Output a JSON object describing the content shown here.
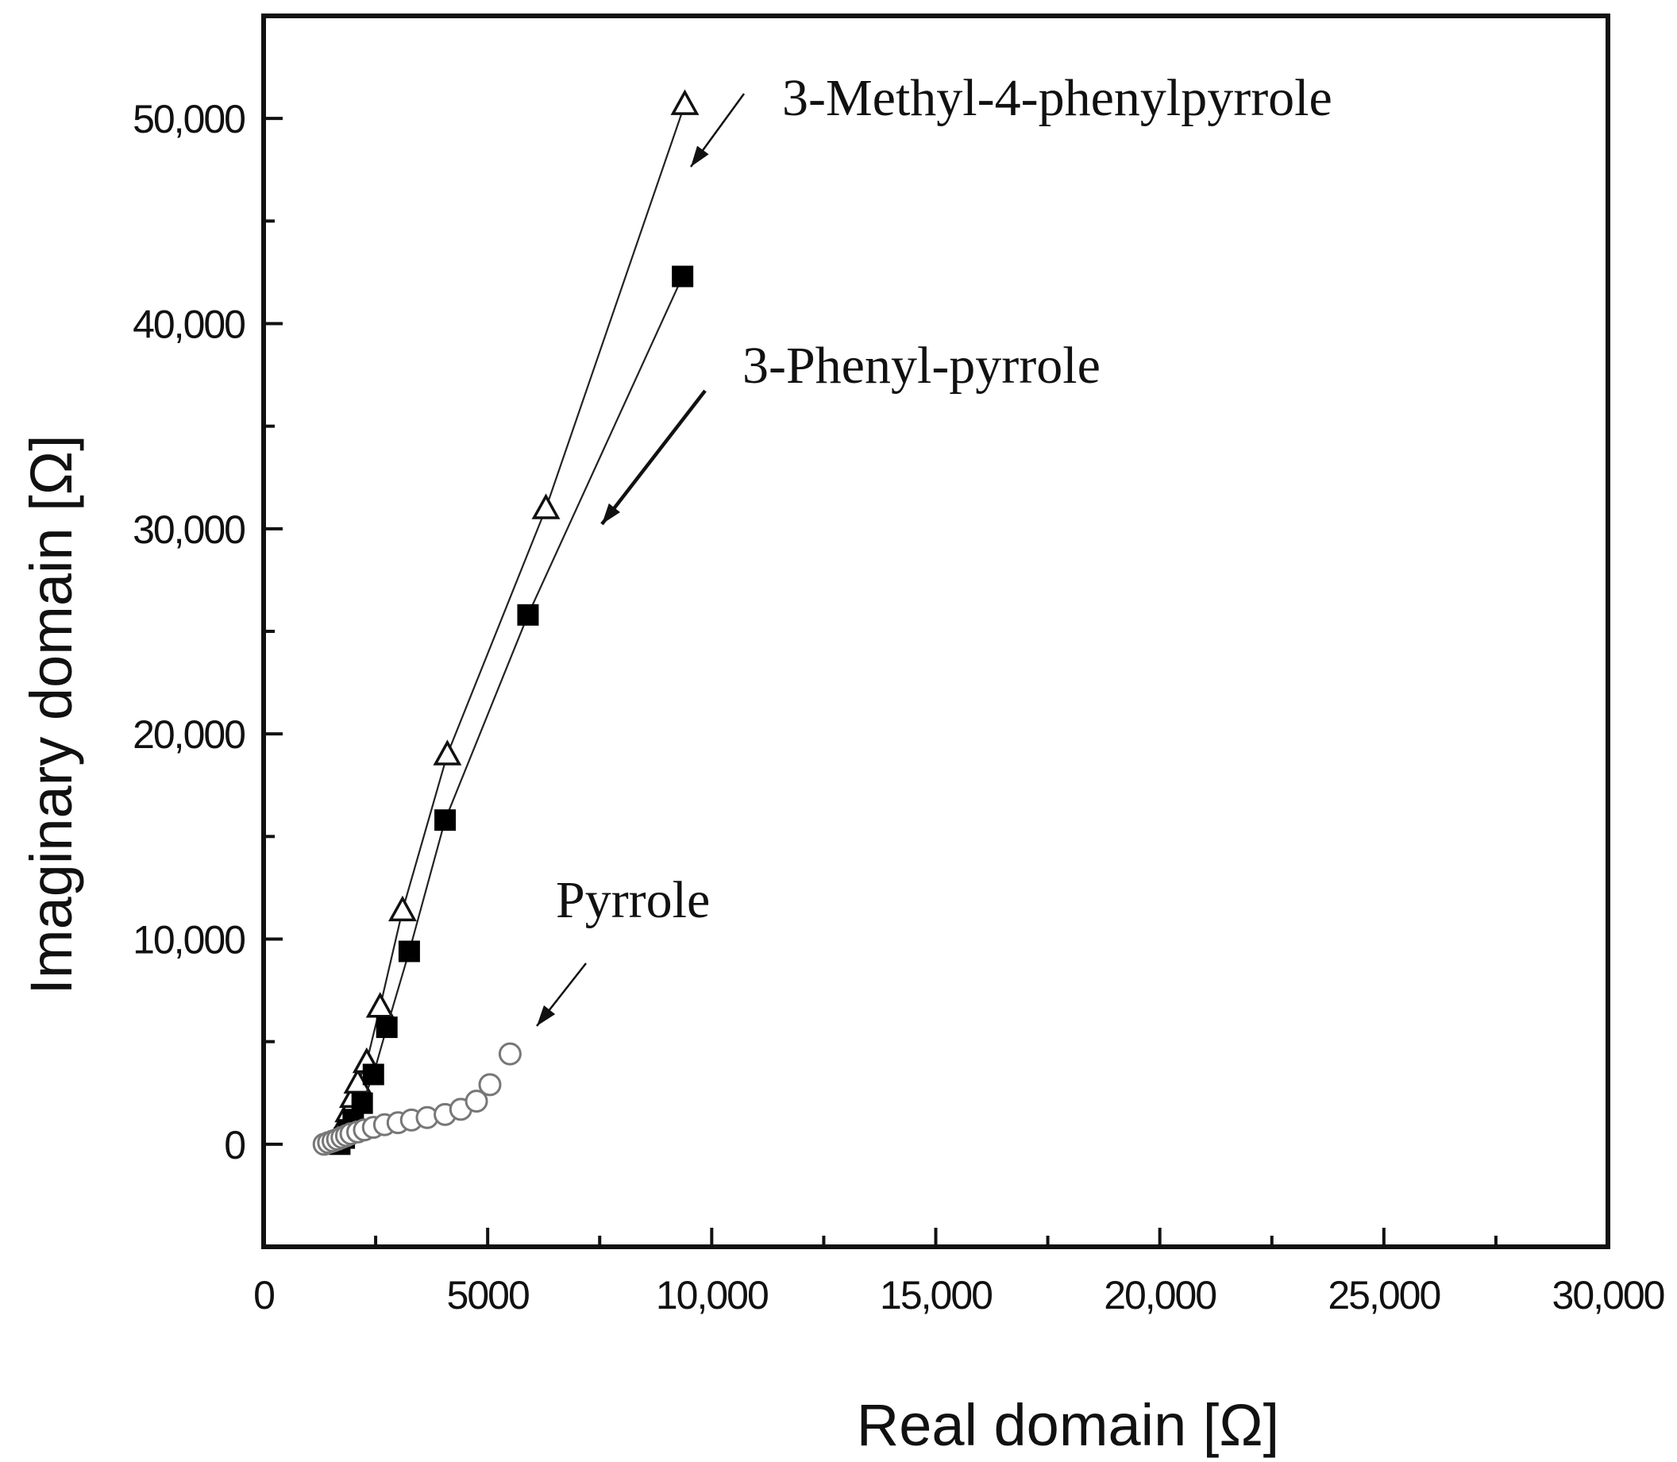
{
  "chart_data": {
    "type": "scatter",
    "title": "",
    "xlabel": "Real domain [Ω]",
    "ylabel": "Imaginary domain [Ω]",
    "xlim": [
      0,
      30000
    ],
    "ylim": [
      -5000,
      55000
    ],
    "x_ticks": [
      0,
      5000,
      10000,
      15000,
      20000,
      25000,
      30000
    ],
    "x_tick_labels": [
      "0",
      "5000",
      "10,000",
      "15,000",
      "20,000",
      "25,000",
      "30,000"
    ],
    "y_ticks": [
      0,
      10000,
      20000,
      30000,
      40000,
      50000
    ],
    "y_tick_labels": [
      "0",
      "10,000",
      "20,000",
      "30,000",
      "40,000",
      "50,000"
    ],
    "grid": false,
    "legend": "none",
    "series": [
      {
        "name": "3-Methyl-4-phenylpyrrole",
        "marker": "triangle",
        "line": true,
        "x": [
          1700,
          1800,
          1900,
          2000,
          2100,
          2300,
          2600,
          3100,
          4100,
          6300,
          9400
        ],
        "y": [
          400,
          1000,
          1600,
          2300,
          3000,
          4000,
          6700,
          11400,
          19000,
          31000,
          50700
        ]
      },
      {
        "name": "3-Phenyl-pyrrole",
        "marker": "square",
        "line": true,
        "x": [
          1700,
          1800,
          1900,
          2000,
          2200,
          2450,
          2750,
          3250,
          4050,
          5900,
          9350
        ],
        "y": [
          0,
          300,
          700,
          1200,
          2000,
          3400,
          5700,
          9400,
          15800,
          25800,
          42300
        ]
      },
      {
        "name": "Pyrrole",
        "marker": "circle",
        "line": false,
        "x": [
          1350,
          1450,
          1550,
          1650,
          1750,
          1850,
          1950,
          2100,
          2250,
          2450,
          2700,
          3000,
          3300,
          3650,
          4050,
          4400,
          4750,
          5050,
          5500
        ],
        "y": [
          0,
          80,
          160,
          240,
          330,
          420,
          510,
          600,
          700,
          820,
          950,
          1050,
          1180,
          1300,
          1450,
          1700,
          2100,
          2900,
          4400
        ]
      }
    ],
    "annotations": [
      {
        "text": "3-Methyl-4-phenylpyrrole",
        "target_series": 0
      },
      {
        "text": "3-Phenyl-pyrrole",
        "target_series": 1
      },
      {
        "text": "Pyrrole",
        "target_series": 2
      }
    ]
  }
}
